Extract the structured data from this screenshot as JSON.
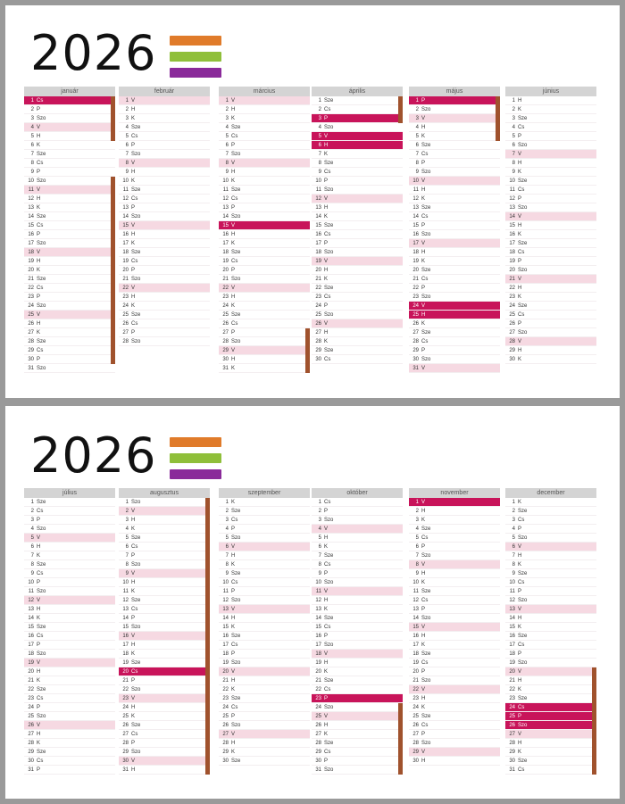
{
  "year": "2026",
  "weekday_abbr": [
    "H",
    "K",
    "Sze",
    "Cs",
    "P",
    "Szo",
    "V"
  ],
  "legend_colors": [
    "#e07b2a",
    "#8fbf3a",
    "#8a2a9a"
  ],
  "colors": {
    "holiday": "#c8145a",
    "sunday": "#f6d9e2",
    "header": "#d4d4d4",
    "school_break": "#a0522d"
  },
  "cards": [
    {
      "months": [
        {
          "name": "január",
          "days": 31
        },
        {
          "name": "február",
          "days": 28
        },
        {
          "name": "március",
          "days": 31
        },
        {
          "name": "április",
          "days": 30
        },
        {
          "name": "május",
          "days": 31
        },
        {
          "name": "június",
          "days": 30
        }
      ]
    },
    {
      "months": [
        {
          "name": "július",
          "days": 31
        },
        {
          "name": "augusztus",
          "days": 31
        },
        {
          "name": "szeptember",
          "days": 30
        },
        {
          "name": "október",
          "days": 31
        },
        {
          "name": "november",
          "days": 30
        },
        {
          "name": "december",
          "days": 31
        }
      ]
    }
  ],
  "holidays": [
    "2026-01-01",
    "2026-03-15",
    "2026-04-03",
    "2026-04-05",
    "2026-04-06",
    "2026-05-01",
    "2026-05-24",
    "2026-05-25",
    "2026-08-20",
    "2026-10-23",
    "2026-11-01",
    "2026-12-24",
    "2026-12-25",
    "2026-12-26"
  ]
}
